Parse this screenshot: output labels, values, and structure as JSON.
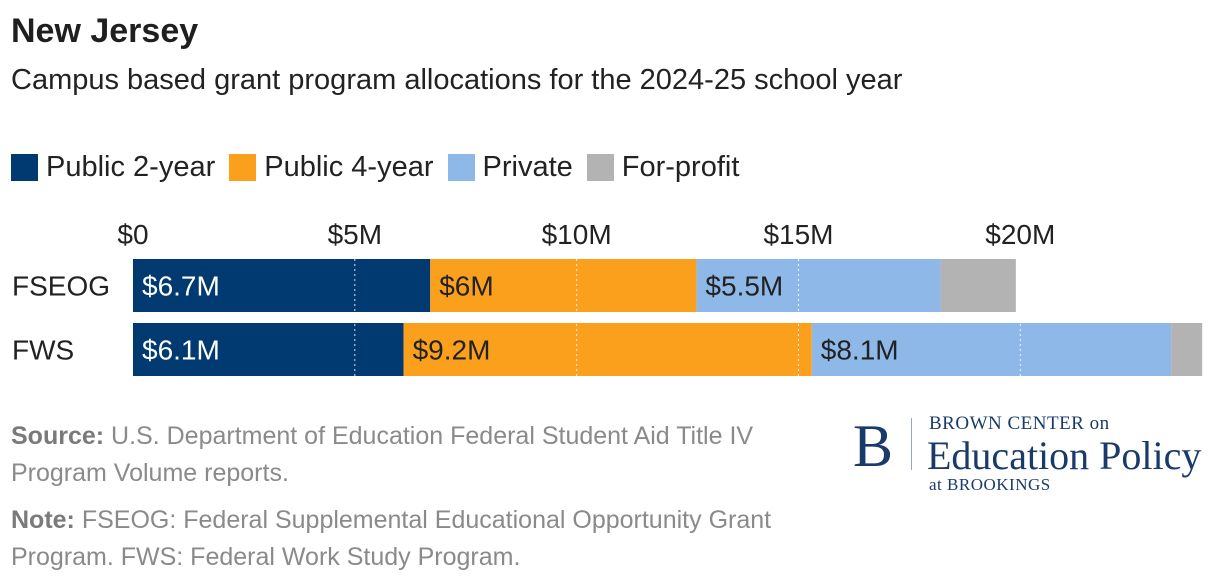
{
  "header": {
    "title": "New Jersey",
    "subtitle": "Campus based grant program allocations for the 2024-25 school year"
  },
  "legend": [
    {
      "label": "Public 2-year",
      "color": "#003a70"
    },
    {
      "label": "Public 4-year",
      "color": "#fba01d"
    },
    {
      "label": "Private",
      "color": "#8db8e8"
    },
    {
      "label": "For-profit",
      "color": "#b3b3b3"
    }
  ],
  "chart_data": {
    "type": "bar",
    "orientation": "horizontal",
    "stacked": true,
    "title": "New Jersey",
    "subtitle": "Campus based grant program allocations for the 2024-25 school year",
    "categories": [
      "FSEOG",
      "FWS"
    ],
    "series": [
      {
        "name": "Public 2-year",
        "color": "#003a70",
        "values": [
          6.7,
          6.1
        ],
        "labels": [
          "$6.7M",
          "$6.1M"
        ]
      },
      {
        "name": "Public 4-year",
        "color": "#fba01d",
        "values": [
          6.0,
          9.2
        ],
        "labels": [
          "$6M",
          "$9.2M"
        ]
      },
      {
        "name": "Private",
        "color": "#8db8e8",
        "values": [
          5.5,
          8.1
        ],
        "labels": [
          "$5.5M",
          "$8.1M"
        ]
      },
      {
        "name": "For-profit",
        "color": "#b3b3b3",
        "values": [
          1.7,
          0.7
        ],
        "labels": [
          "",
          ""
        ]
      }
    ],
    "xlim": [
      0,
      23.6
    ],
    "xticks": [
      0,
      5,
      10,
      15,
      20
    ],
    "xtick_labels": [
      "$0",
      "$5M",
      "$10M",
      "$15M",
      "$20M"
    ],
    "grid": true,
    "legend_position": "top-left"
  },
  "footer": {
    "source_label": "Source:",
    "source_text": "U.S. Department of Education Federal Student Aid Title IV Program Volume reports.",
    "note_label": "Note:",
    "note_text": "FSEOG: Federal Supplemental Educational Opportunity Grant Program. FWS: Federal Work Study Program."
  },
  "logo": {
    "letter": "B",
    "line1": "BROWN CENTER on",
    "line2": "Education Policy",
    "line3": "at BROOKINGS",
    "color": "#1a3a6b"
  }
}
